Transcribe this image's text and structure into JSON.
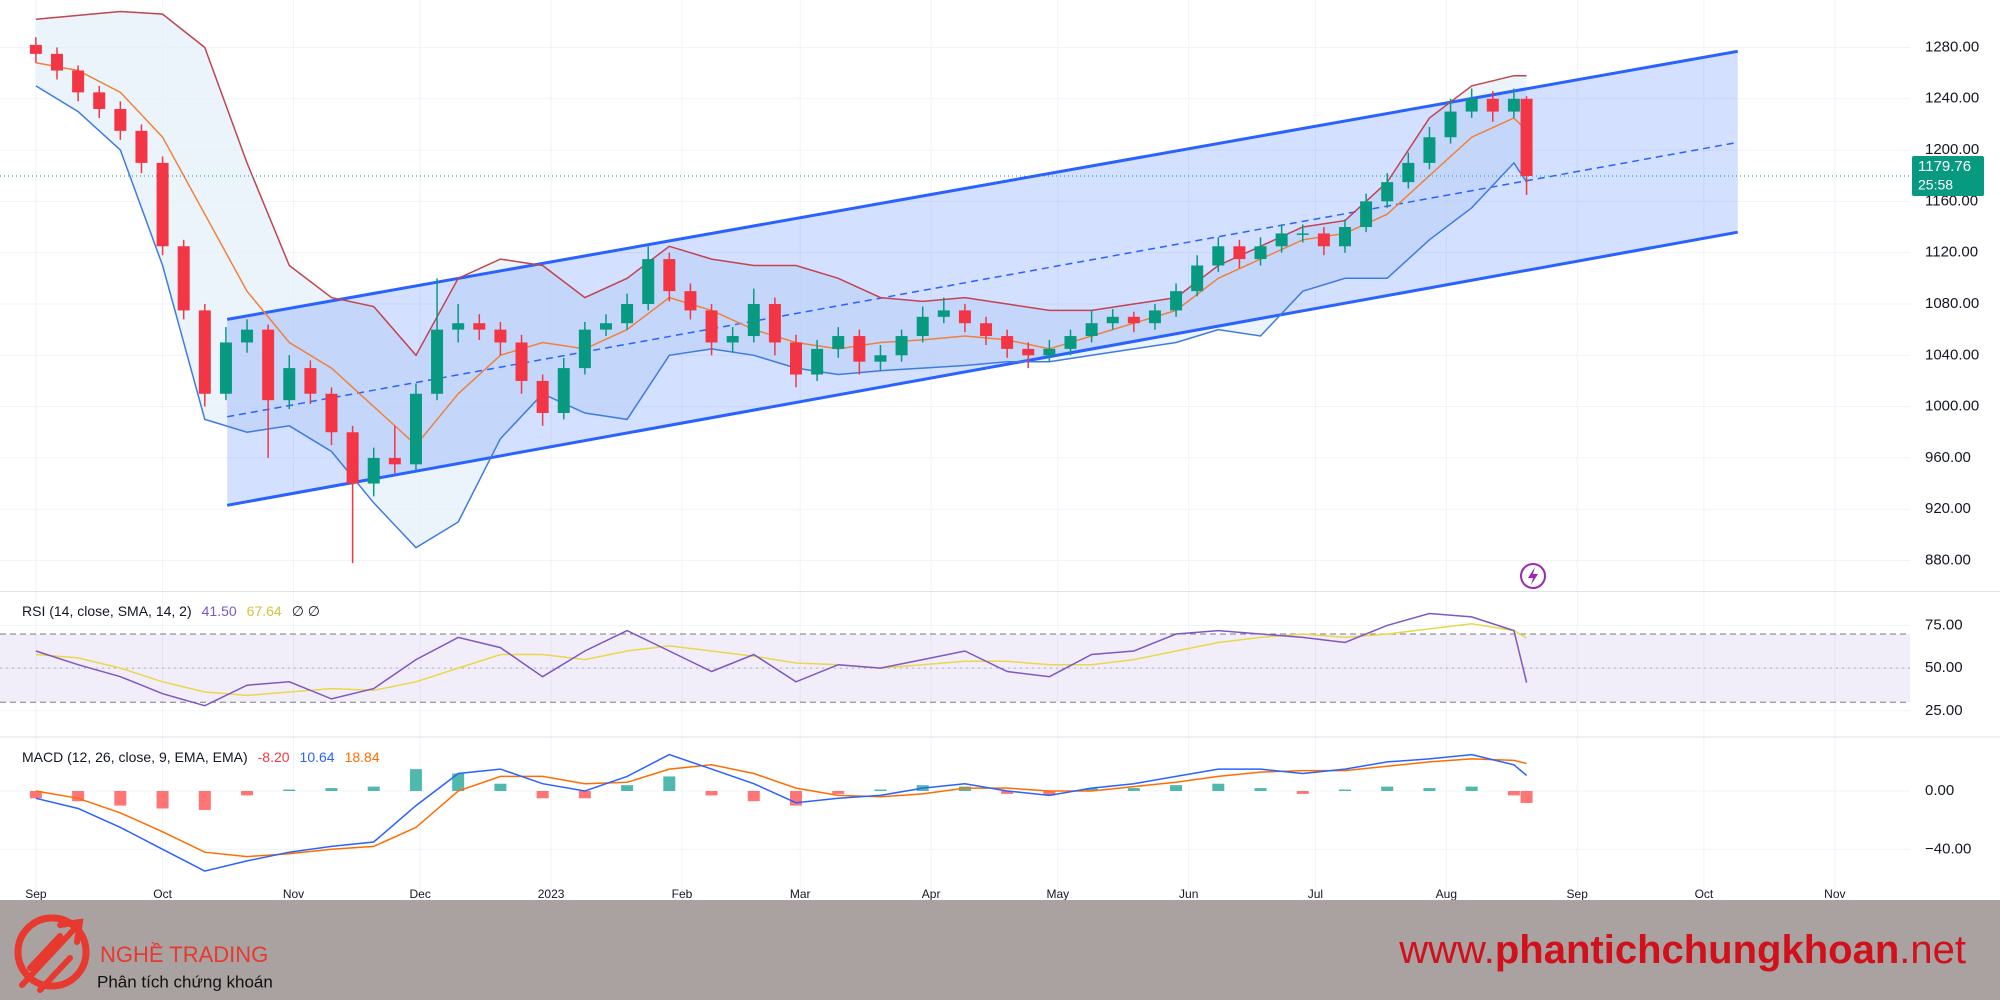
{
  "chart_data": {
    "type": "candlestick",
    "x_axis": {
      "xlim": [
        -8.5,
        443.8
      ],
      "xticks": [
        {
          "value": 0,
          "label": "Sep"
        },
        {
          "value": 30,
          "label": "Oct"
        },
        {
          "value": 61,
          "label": "Nov"
        },
        {
          "value": 91,
          "label": "Dec"
        },
        {
          "value": 122,
          "label": "2023"
        },
        {
          "value": 153,
          "label": "Feb"
        },
        {
          "value": 181,
          "label": "Mar"
        },
        {
          "value": 212,
          "label": "Apr"
        },
        {
          "value": 242,
          "label": "May"
        },
        {
          "value": 273,
          "label": "Jun"
        },
        {
          "value": 303,
          "label": "Jul"
        },
        {
          "value": 334,
          "label": "Aug"
        },
        {
          "value": 365,
          "label": "Sep"
        },
        {
          "value": 395,
          "label": "Oct"
        },
        {
          "value": 426,
          "label": "Nov"
        }
      ]
    },
    "price": {
      "ylim": [
        857,
        1317
      ],
      "yticks": [
        {
          "value": 880,
          "label": "880.00"
        },
        {
          "value": 920,
          "label": "920.00"
        },
        {
          "value": 960,
          "label": "960.00"
        },
        {
          "value": 1000,
          "label": "1000.00"
        },
        {
          "value": 1040,
          "label": "1040.00"
        },
        {
          "value": 1080,
          "label": "1080.00"
        },
        {
          "value": 1120,
          "label": "1120.00"
        },
        {
          "value": 1160,
          "label": "1160.00"
        },
        {
          "value": 1200,
          "label": "1200.00"
        },
        {
          "value": 1240,
          "label": "1240.00"
        },
        {
          "value": 1280,
          "label": "1280.00"
        }
      ],
      "up_color": "#089981",
      "down_color": "#f23645",
      "x": [
        0,
        5,
        10,
        15,
        20,
        25,
        30,
        35,
        40,
        45,
        50,
        55,
        60,
        65,
        70,
        75,
        80,
        85,
        90,
        95,
        100,
        105,
        110,
        115,
        120,
        125,
        130,
        135,
        140,
        145,
        150,
        155,
        160,
        165,
        170,
        175,
        180,
        185,
        190,
        195,
        200,
        205,
        210,
        215,
        220,
        225,
        230,
        235,
        240,
        245,
        250,
        255,
        260,
        265,
        270,
        275,
        280,
        285,
        290,
        295,
        300,
        305,
        310,
        315,
        320,
        325,
        330,
        335,
        340,
        345,
        350,
        353
      ],
      "open": [
        1282,
        1275,
        1262,
        1245,
        1232,
        1215,
        1190,
        1125,
        1075,
        1010,
        1050,
        1060,
        1005,
        1030,
        1010,
        980,
        940,
        960,
        955,
        1010,
        1060,
        1065,
        1060,
        1050,
        1020,
        995,
        1030,
        1060,
        1065,
        1080,
        1115,
        1090,
        1075,
        1050,
        1055,
        1080,
        1050,
        1025,
        1045,
        1055,
        1035,
        1040,
        1055,
        1070,
        1075,
        1065,
        1055,
        1045,
        1040,
        1045,
        1055,
        1065,
        1070,
        1065,
        1075,
        1090,
        1110,
        1125,
        1115,
        1125,
        1135,
        1135,
        1125,
        1140,
        1160,
        1175,
        1190,
        1210,
        1230,
        1240,
        1230,
        1240
      ],
      "high": [
        1288,
        1280,
        1266,
        1250,
        1238,
        1220,
        1195,
        1130,
        1080,
        1062,
        1068,
        1064,
        1040,
        1036,
        1015,
        985,
        968,
        985,
        1018,
        1100,
        1080,
        1072,
        1066,
        1056,
        1025,
        1038,
        1066,
        1072,
        1088,
        1125,
        1120,
        1096,
        1080,
        1062,
        1092,
        1085,
        1056,
        1052,
        1062,
        1060,
        1048,
        1060,
        1078,
        1085,
        1080,
        1070,
        1060,
        1050,
        1052,
        1060,
        1075,
        1076,
        1074,
        1080,
        1096,
        1118,
        1132,
        1130,
        1132,
        1142,
        1142,
        1140,
        1146,
        1166,
        1182,
        1198,
        1218,
        1240,
        1248,
        1246,
        1248,
        1242
      ],
      "low": [
        1268,
        1255,
        1238,
        1225,
        1208,
        1182,
        1118,
        1068,
        1000,
        1005,
        1042,
        960,
        998,
        1002,
        970,
        878,
        930,
        948,
        950,
        1005,
        1050,
        1052,
        1040,
        1010,
        985,
        990,
        1025,
        1055,
        1060,
        1075,
        1082,
        1068,
        1040,
        1042,
        1050,
        1040,
        1015,
        1020,
        1038,
        1025,
        1028,
        1035,
        1050,
        1065,
        1058,
        1048,
        1038,
        1030,
        1035,
        1040,
        1050,
        1060,
        1058,
        1060,
        1070,
        1086,
        1105,
        1108,
        1110,
        1120,
        1128,
        1118,
        1120,
        1136,
        1155,
        1170,
        1185,
        1205,
        1225,
        1222,
        1225,
        1165
      ],
      "close": [
        1275,
        1262,
        1245,
        1232,
        1215,
        1190,
        1125,
        1075,
        1010,
        1050,
        1060,
        1005,
        1030,
        1010,
        980,
        940,
        960,
        955,
        1010,
        1060,
        1065,
        1060,
        1050,
        1020,
        995,
        1030,
        1060,
        1065,
        1080,
        1115,
        1090,
        1075,
        1050,
        1055,
        1080,
        1050,
        1025,
        1045,
        1055,
        1035,
        1040,
        1055,
        1070,
        1075,
        1065,
        1055,
        1045,
        1040,
        1045,
        1055,
        1065,
        1070,
        1065,
        1075,
        1090,
        1110,
        1125,
        1115,
        1125,
        1135,
        1135,
        1125,
        1140,
        1160,
        1175,
        1190,
        1210,
        1230,
        1240,
        1230,
        1240,
        1179.76
      ],
      "last_price": 1179.76,
      "last_color": "#089981",
      "countdown": "25:58",
      "bollinger": {
        "x": [
          0,
          10,
          20,
          30,
          40,
          50,
          60,
          70,
          80,
          90,
          100,
          110,
          120,
          130,
          140,
          150,
          160,
          170,
          180,
          190,
          200,
          210,
          220,
          230,
          240,
          250,
          260,
          270,
          280,
          290,
          300,
          310,
          320,
          330,
          340,
          350,
          353
        ],
        "upper": [
          1302,
          1305,
          1308,
          1306,
          1280,
          1190,
          1110,
          1085,
          1078,
          1040,
          1100,
          1115,
          1110,
          1085,
          1100,
          1125,
          1115,
          1110,
          1110,
          1100,
          1085,
          1082,
          1085,
          1080,
          1075,
          1075,
          1080,
          1085,
          1110,
          1125,
          1140,
          1145,
          1175,
          1225,
          1250,
          1258,
          1258
        ],
        "basis": [
          1268,
          1262,
          1245,
          1210,
          1150,
          1090,
          1050,
          1030,
          1000,
          970,
          1010,
          1040,
          1050,
          1045,
          1060,
          1085,
          1075,
          1060,
          1050,
          1045,
          1050,
          1052,
          1055,
          1052,
          1045,
          1055,
          1065,
          1075,
          1100,
          1115,
          1130,
          1135,
          1150,
          1180,
          1210,
          1225,
          1215
        ],
        "lower": [
          1250,
          1230,
          1200,
          1110,
          990,
          980,
          985,
          965,
          925,
          890,
          910,
          975,
          1010,
          995,
          990,
          1040,
          1045,
          1040,
          1030,
          1025,
          1028,
          1030,
          1032,
          1035,
          1035,
          1040,
          1045,
          1050,
          1060,
          1055,
          1090,
          1100,
          1100,
          1130,
          1155,
          1190,
          1175
        ],
        "upper_color": "#c2444f",
        "basis_color": "#f0803c",
        "lower_color": "#3f7be0",
        "fill_color": "#e3effa"
      },
      "channel": {
        "x": [
          45.3,
          403
        ],
        "upper": [
          1068,
          1277
        ],
        "middle": [
          992,
          1206
        ],
        "lower": [
          923,
          1136
        ],
        "color": "#2962ff"
      }
    },
    "rsi": {
      "name": "RSI (14, close, SMA, 14, 2)",
      "legend_values": [
        "41.50",
        "67.64"
      ],
      "legend_extra": "∅ ∅",
      "ylim": [
        12,
        94
      ],
      "yticks": [
        {
          "value": 25,
          "label": "25.00"
        },
        {
          "value": 50,
          "label": "50.00"
        },
        {
          "value": 75,
          "label": "75.00"
        }
      ],
      "bands": [
        70,
        50,
        30
      ],
      "x": [
        0,
        10,
        20,
        30,
        40,
        50,
        60,
        70,
        80,
        90,
        100,
        110,
        120,
        130,
        140,
        150,
        160,
        170,
        180,
        190,
        200,
        210,
        220,
        230,
        240,
        250,
        260,
        270,
        280,
        290,
        300,
        310,
        320,
        330,
        340,
        350,
        353
      ],
      "values": [
        60,
        52,
        45,
        35,
        28,
        40,
        42,
        32,
        38,
        55,
        68,
        62,
        45,
        60,
        72,
        60,
        48,
        58,
        42,
        52,
        50,
        55,
        60,
        48,
        45,
        58,
        60,
        70,
        72,
        70,
        68,
        65,
        75,
        82,
        80,
        72,
        41.5
      ],
      "ma": [
        58,
        56,
        50,
        42,
        36,
        34,
        36,
        38,
        37,
        42,
        50,
        58,
        58,
        55,
        60,
        63,
        60,
        57,
        53,
        52,
        50,
        52,
        54,
        54,
        52,
        52,
        55,
        60,
        65,
        68,
        70,
        68,
        70,
        73,
        76,
        72,
        67.64
      ],
      "color": "#7e57c2",
      "ma_color": "#e8d84a"
    },
    "macd": {
      "name": "MACD (12, 26, close, 9, EMA, EMA)",
      "legend_values": [
        "-8.20",
        "10.64",
        "18.84"
      ],
      "ylim": [
        -70,
        35
      ],
      "yticks": [
        {
          "value": -40,
          "label": "−40.00"
        },
        {
          "value": 0,
          "label": "0.00"
        }
      ],
      "x": [
        0,
        10,
        20,
        30,
        40,
        50,
        60,
        70,
        80,
        90,
        100,
        110,
        120,
        130,
        140,
        150,
        160,
        170,
        180,
        190,
        200,
        210,
        220,
        230,
        240,
        250,
        260,
        270,
        280,
        290,
        300,
        310,
        320,
        330,
        340,
        350,
        353
      ],
      "histogram": [
        -5,
        -7,
        -10,
        -12,
        -13,
        -3,
        1,
        2,
        3,
        15,
        12,
        5,
        -5,
        -5,
        4,
        10,
        -3,
        -7,
        -10,
        -2,
        1,
        4,
        3,
        -2,
        -3,
        2,
        2,
        4,
        5,
        2,
        -2,
        1,
        3,
        2,
        3,
        -3,
        -8.2
      ],
      "macd": [
        -5,
        -12,
        -25,
        -40,
        -55,
        -48,
        -42,
        -38,
        -35,
        -10,
        12,
        15,
        5,
        0,
        10,
        25,
        15,
        5,
        -8,
        -5,
        -3,
        2,
        5,
        0,
        -3,
        2,
        5,
        10,
        15,
        15,
        12,
        15,
        20,
        22,
        25,
        18,
        10.64
      ],
      "signal": [
        0,
        -5,
        -15,
        -28,
        -42,
        -45,
        -43,
        -40,
        -38,
        -25,
        0,
        10,
        10,
        5,
        6,
        15,
        18,
        12,
        2,
        -3,
        -4,
        -2,
        2,
        2,
        0,
        0,
        3,
        6,
        10,
        13,
        14,
        14,
        17,
        20,
        22,
        21,
        18.84
      ],
      "macd_color": "#2962ff",
      "signal_color": "#ff6d00",
      "hist_up_color": "#26a69a",
      "hist_down_color": "#ff5252"
    }
  },
  "footer": {
    "brand": "NGHỀ TRADING",
    "tagline": "Phân tích chứng khoán",
    "website": {
      "prefix": "www.",
      "domain": "phantichchungkhoan",
      "suffix": ".net"
    }
  }
}
